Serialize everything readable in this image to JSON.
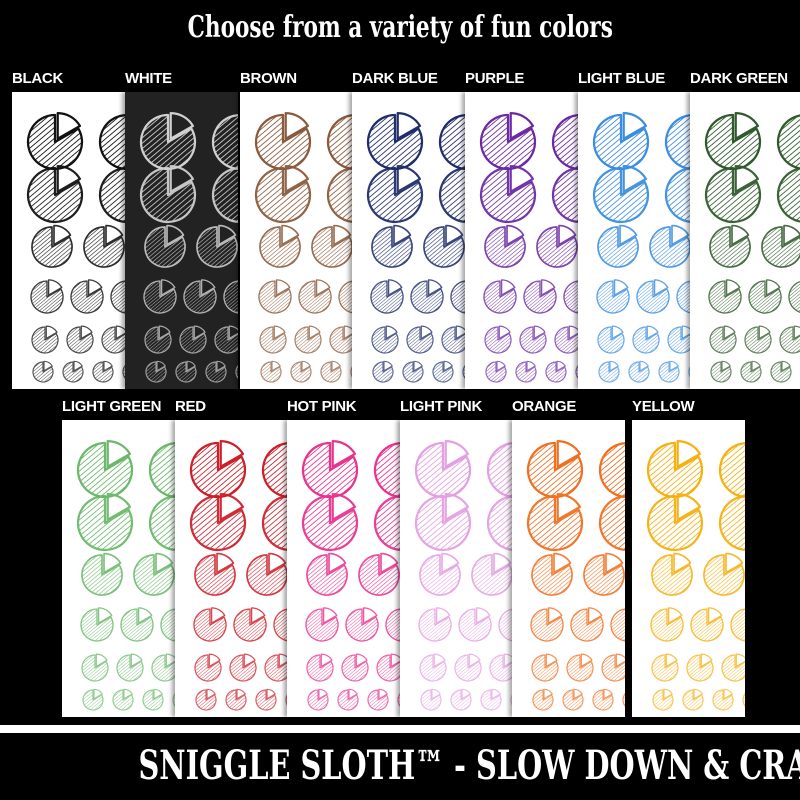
{
  "header": {
    "title": "Choose from a variety of fun colors"
  },
  "footer": {
    "text": "SNIGGLE SLOTH™ - SLOW DOWN & CRAFT"
  },
  "icon": "pie-chart-icon",
  "rows": [
    {
      "sheets": [
        {
          "label": "BLACK",
          "color": "#111111",
          "bg": "#ffffff"
        },
        {
          "label": "WHITE",
          "color": "#d0d0d0",
          "bg": "#222222"
        },
        {
          "label": "BROWN",
          "color": "#8b5a3c",
          "bg": "#ffffff"
        },
        {
          "label": "DARK BLUE",
          "color": "#1f2d6b",
          "bg": "#ffffff"
        },
        {
          "label": "PURPLE",
          "color": "#6b2aa3",
          "bg": "#ffffff"
        },
        {
          "label": "LIGHT BLUE",
          "color": "#3b8de0",
          "bg": "#ffffff"
        },
        {
          "label": "DARK GREEN",
          "color": "#2f5a2b",
          "bg": "#ffffff"
        }
      ]
    },
    {
      "sheets": [
        {
          "label": "LIGHT GREEN",
          "color": "#6bb86b",
          "bg": "#ffffff"
        },
        {
          "label": "RED",
          "color": "#cc1f2a",
          "bg": "#ffffff"
        },
        {
          "label": "HOT PINK",
          "color": "#e8338f",
          "bg": "#ffffff"
        },
        {
          "label": "LIGHT PINK",
          "color": "#e3a0e0",
          "bg": "#ffffff"
        },
        {
          "label": "ORANGE",
          "color": "#f07022",
          "bg": "#ffffff"
        },
        {
          "label": "YELLOW",
          "color": "#f5b012",
          "bg": "#ffffff"
        }
      ]
    }
  ]
}
